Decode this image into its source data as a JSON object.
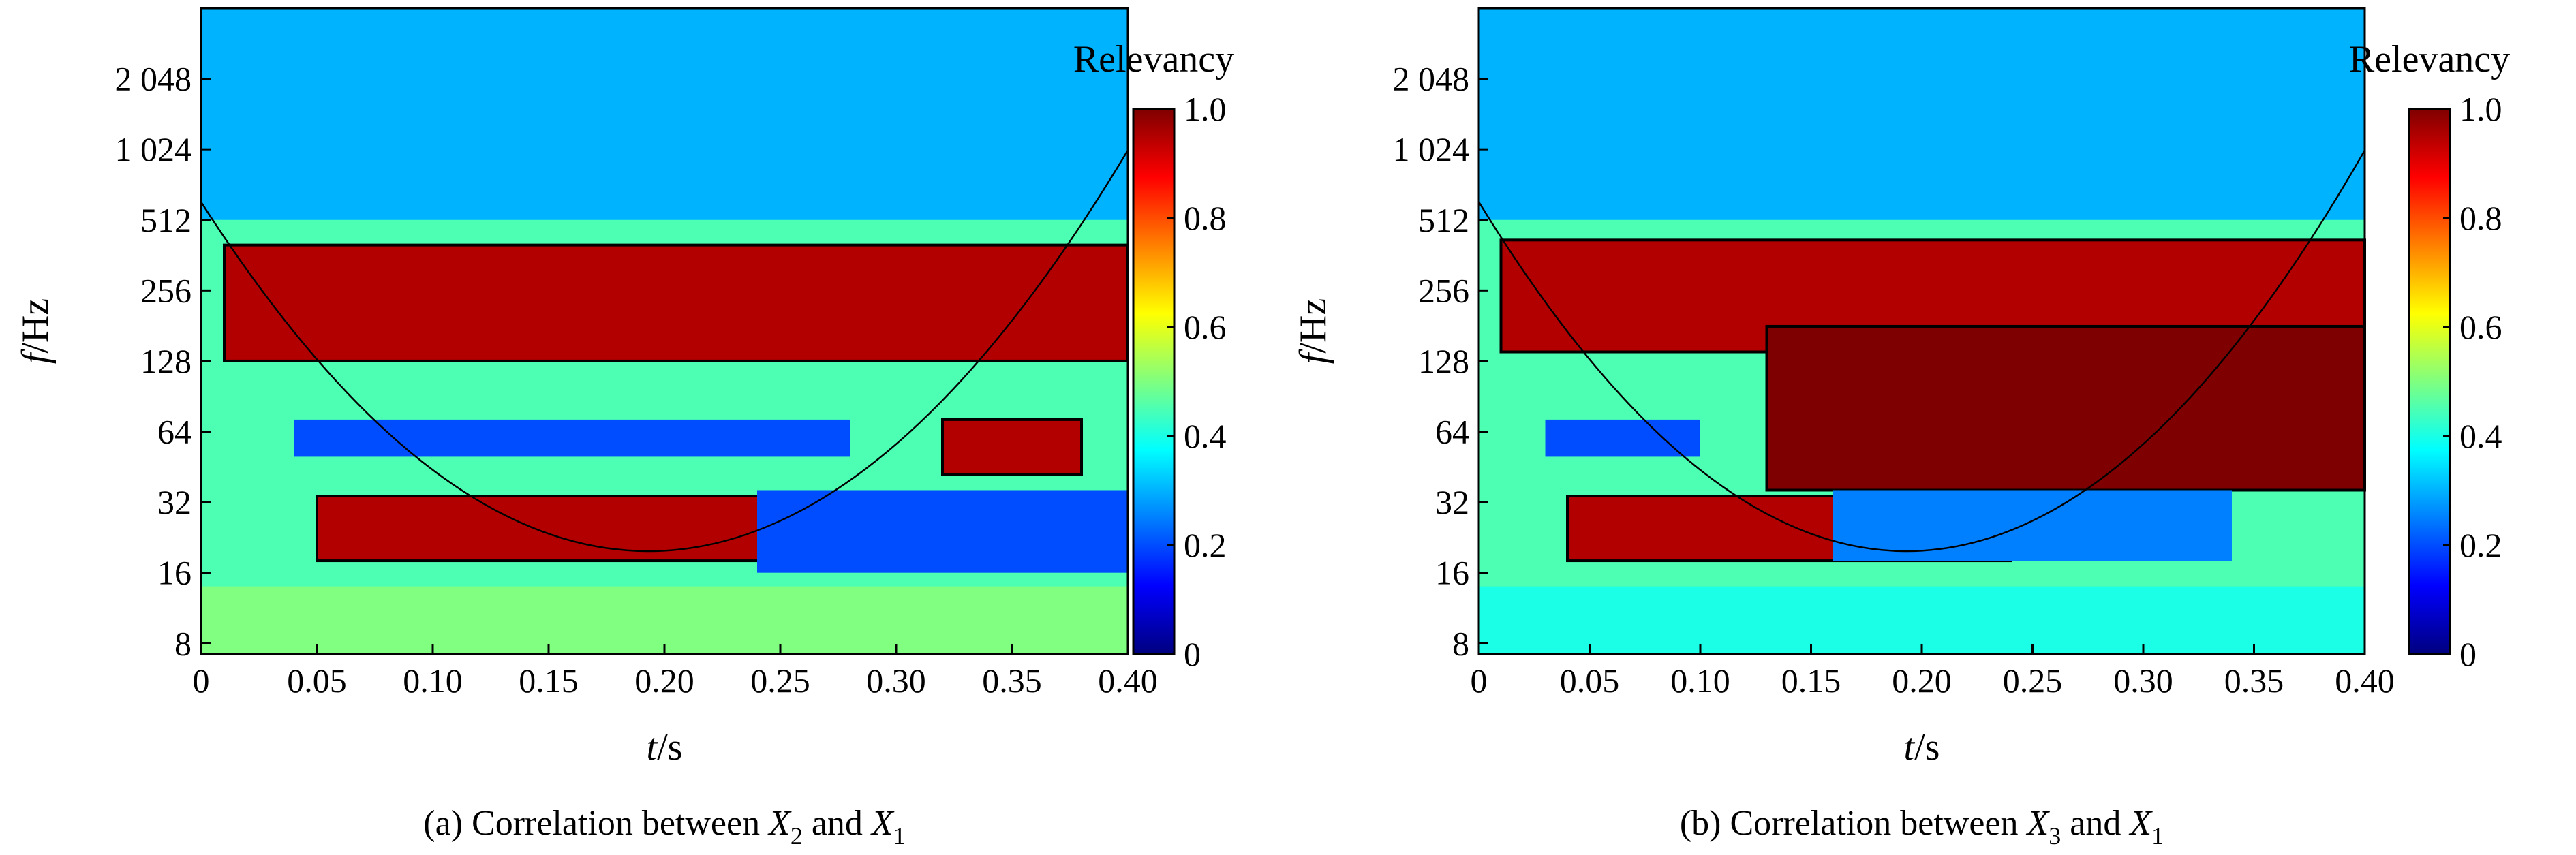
{
  "chart_data": [
    {
      "type": "heatmap",
      "caption": {
        "prefix": "(a) Correlation between ",
        "var1": "X",
        "sub1": "2",
        "mid": " and ",
        "var2": "X",
        "sub2": "1"
      },
      "xlabel": {
        "italic": "t",
        "unit": "/s"
      },
      "ylabel": {
        "italic": "f",
        "unit": "/Hz"
      },
      "x_ticks": [
        "0",
        "0.05",
        "0.10",
        "0.15",
        "0.20",
        "0.25",
        "0.30",
        "0.35",
        "0.40"
      ],
      "x_tick_values": [
        0,
        0.05,
        0.1,
        0.15,
        0.2,
        0.25,
        0.3,
        0.35,
        0.4
      ],
      "xlim": [
        0,
        0.4
      ],
      "y_ticks": [
        "8",
        "16",
        "32",
        "64",
        "128",
        "256",
        "512",
        "1 024",
        "2 048"
      ],
      "y_tick_values": [
        8,
        16,
        32,
        64,
        128,
        256,
        512,
        1024,
        2048
      ],
      "yscale": "log2",
      "ylim": [
        7.2,
        4096
      ],
      "colorbar": {
        "title": "Relevancy",
        "ticks": [
          "0",
          "0.2",
          "0.4",
          "0.6",
          "0.8",
          "1.0"
        ],
        "tick_values": [
          0,
          0.2,
          0.4,
          0.6,
          0.8,
          1.0
        ],
        "range": [
          0,
          1
        ]
      },
      "regions": [
        {
          "t": [
            0.0,
            0.4
          ],
          "f": [
            512,
            4096
          ],
          "relevancy": 0.3
        },
        {
          "t": [
            0.01,
            0.4
          ],
          "f": [
            128,
            400
          ],
          "relevancy": 0.95
        },
        {
          "t": [
            0.04,
            0.28
          ],
          "f": [
            50,
            72
          ],
          "relevancy": 0.2
        },
        {
          "t": [
            0.32,
            0.38
          ],
          "f": [
            42,
            72
          ],
          "relevancy": 0.95
        },
        {
          "t": [
            0.05,
            0.25
          ],
          "f": [
            18,
            34
          ],
          "relevancy": 0.95
        },
        {
          "t": [
            0.24,
            0.4
          ],
          "f": [
            16,
            36
          ],
          "relevancy": 0.2
        },
        {
          "t": [
            0.0,
            0.4
          ],
          "f": [
            7.2,
            14
          ],
          "relevancy": 0.5
        }
      ]
    },
    {
      "type": "heatmap",
      "caption": {
        "prefix": "(b) Correlation between ",
        "var1": "X",
        "sub1": "3",
        "mid": " and ",
        "var2": "X",
        "sub2": "1"
      },
      "xlabel": {
        "italic": "t",
        "unit": "/s"
      },
      "ylabel": {
        "italic": "f",
        "unit": "/Hz"
      },
      "x_ticks": [
        "0",
        "0.05",
        "0.10",
        "0.15",
        "0.20",
        "0.25",
        "0.30",
        "0.35",
        "0.40"
      ],
      "x_tick_values": [
        0,
        0.05,
        0.1,
        0.15,
        0.2,
        0.25,
        0.3,
        0.35,
        0.4
      ],
      "xlim": [
        0,
        0.4
      ],
      "y_ticks": [
        "8",
        "16",
        "32",
        "64",
        "128",
        "256",
        "512",
        "1 024",
        "2 048"
      ],
      "y_tick_values": [
        8,
        16,
        32,
        64,
        128,
        256,
        512,
        1024,
        2048
      ],
      "yscale": "log2",
      "ylim": [
        7.2,
        4096
      ],
      "colorbar": {
        "title": "Relevancy",
        "ticks": [
          "0",
          "0.2",
          "0.4",
          "0.6",
          "0.8",
          "1.0"
        ],
        "tick_values": [
          0,
          0.2,
          0.4,
          0.6,
          0.8,
          1.0
        ],
        "range": [
          0,
          1
        ]
      },
      "regions": [
        {
          "t": [
            0.0,
            0.4
          ],
          "f": [
            512,
            4096
          ],
          "relevancy": 0.3
        },
        {
          "t": [
            0.01,
            0.4
          ],
          "f": [
            140,
            420
          ],
          "relevancy": 0.95
        },
        {
          "t": [
            0.13,
            0.4
          ],
          "f": [
            36,
            180
          ],
          "relevancy": 1.0
        },
        {
          "t": [
            0.03,
            0.1
          ],
          "f": [
            50,
            72
          ],
          "relevancy": 0.2
        },
        {
          "t": [
            0.04,
            0.24
          ],
          "f": [
            18,
            34
          ],
          "relevancy": 0.95
        },
        {
          "t": [
            0.16,
            0.34
          ],
          "f": [
            18,
            36
          ],
          "relevancy": 0.25
        },
        {
          "t": [
            0.0,
            0.4
          ],
          "f": [
            7.2,
            14
          ],
          "relevancy": 0.4
        }
      ]
    }
  ]
}
